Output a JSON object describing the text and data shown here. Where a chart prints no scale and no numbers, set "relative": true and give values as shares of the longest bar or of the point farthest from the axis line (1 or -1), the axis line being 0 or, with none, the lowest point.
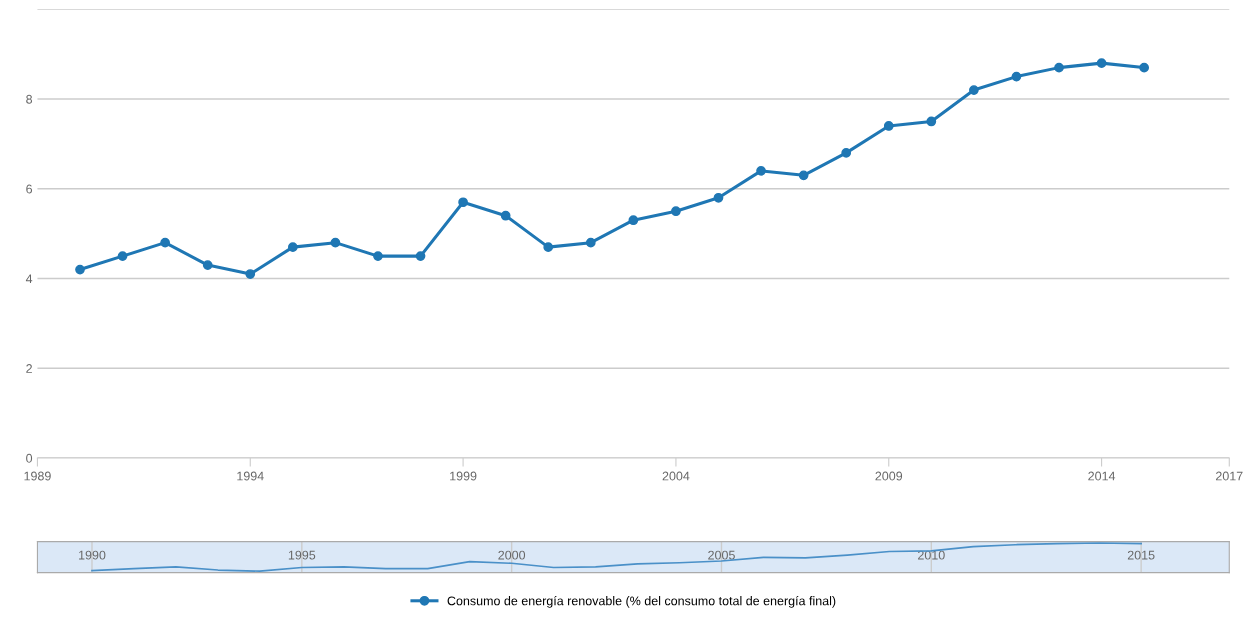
{
  "chart_data": [
    {
      "type": "line",
      "x": [
        1990,
        1991,
        1992,
        1993,
        1994,
        1995,
        1996,
        1997,
        1998,
        1999,
        2000,
        2001,
        2002,
        2003,
        2004,
        2005,
        2006,
        2007,
        2008,
        2009,
        2010,
        2011,
        2012,
        2013,
        2014,
        2015
      ],
      "series": [
        {
          "name": "Consumo de energía renovable (% del consumo total de energía final)",
          "color": "#1f77b4",
          "values": [
            4.2,
            4.5,
            4.8,
            4.3,
            4.1,
            4.7,
            4.8,
            4.5,
            4.5,
            5.7,
            5.4,
            4.7,
            4.8,
            5.3,
            5.5,
            5.8,
            6.4,
            6.3,
            6.8,
            7.4,
            7.5,
            8.2,
            8.5,
            8.7,
            8.8,
            8.7
          ]
        }
      ],
      "xlim": [
        1989,
        2017
      ],
      "xticks": [
        1989,
        1994,
        1999,
        2004,
        2009,
        2014,
        2017
      ],
      "ylim": [
        0,
        10
      ],
      "yticks": [
        0,
        2,
        4,
        6,
        8,
        {
          "value": 10,
          "label": null
        }
      ],
      "grid": "y",
      "legend": "bottom",
      "marker": "circle",
      "line_style": "solid"
    },
    {
      "type": "line",
      "relative": true,
      "x": [
        1990,
        1991,
        1992,
        1993,
        1994,
        1995,
        1996,
        1997,
        1998,
        1999,
        2000,
        2001,
        2002,
        2003,
        2004,
        2005,
        2006,
        2007,
        2008,
        2009,
        2010,
        2011,
        2012,
        2013,
        2014,
        2015
      ],
      "series": [
        {
          "color": "#4a90c8",
          "values": [
            0.02,
            0.09,
            0.15,
            0.04,
            0,
            0.13,
            0.15,
            0.09,
            0.09,
            0.34,
            0.28,
            0.13,
            0.15,
            0.26,
            0.3,
            0.36,
            0.49,
            0.47,
            0.57,
            0.7,
            0.72,
            0.87,
            0.94,
            0.98,
            1,
            0.98
          ]
        }
      ],
      "xlim": [
        1988.7,
        2017.1
      ],
      "xticks": [
        1990,
        1995,
        2000,
        2005,
        2010,
        2015
      ],
      "tick_labels": "x",
      "grid": "x",
      "marker": "none",
      "line_style": "solid"
    }
  ]
}
